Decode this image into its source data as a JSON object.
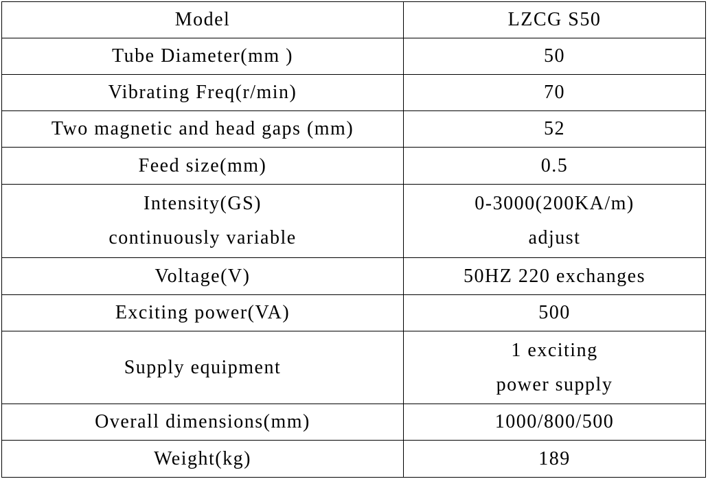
{
  "table": {
    "rows": [
      [
        [
          "Model"
        ],
        [
          "LZCG S50"
        ]
      ],
      [
        [
          "Tube Diameter(mm )"
        ],
        [
          "50"
        ]
      ],
      [
        [
          "Vibrating Freq(r/min)"
        ],
        [
          "70"
        ]
      ],
      [
        [
          "Two magnetic and head gaps (mm)"
        ],
        [
          "52"
        ]
      ],
      [
        [
          "Feed size(mm)"
        ],
        [
          "0.5"
        ]
      ],
      [
        [
          "Intensity(GS)",
          "continuously variable"
        ],
        [
          "0-3000(200KA/m)",
          "adjust"
        ]
      ],
      [
        [
          "Voltage(V)"
        ],
        [
          "50HZ 220 exchanges"
        ]
      ],
      [
        [
          "Exciting power(VA)"
        ],
        [
          "500"
        ]
      ],
      [
        [
          "Supply equipment"
        ],
        [
          "1 exciting",
          "power supply"
        ]
      ],
      [
        [
          "Overall dimensions(mm)"
        ],
        [
          "1000/800/500"
        ]
      ],
      [
        [
          "Weight(kg)"
        ],
        [
          "189"
        ]
      ]
    ]
  }
}
